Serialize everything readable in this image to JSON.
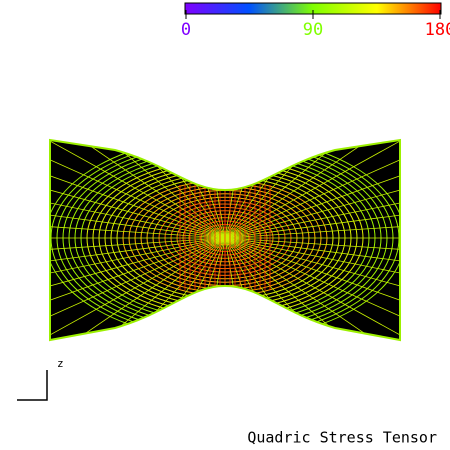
{
  "colorbar": {
    "range": [
      0,
      180
    ],
    "ticks": [
      0,
      90,
      180
    ],
    "colormap": [
      "#8000ff",
      "#0050ff",
      "#80ff00",
      "#ffff00",
      "#ff0000"
    ]
  },
  "axis_label": "z",
  "caption": "Quadric Stress Tensor"
}
